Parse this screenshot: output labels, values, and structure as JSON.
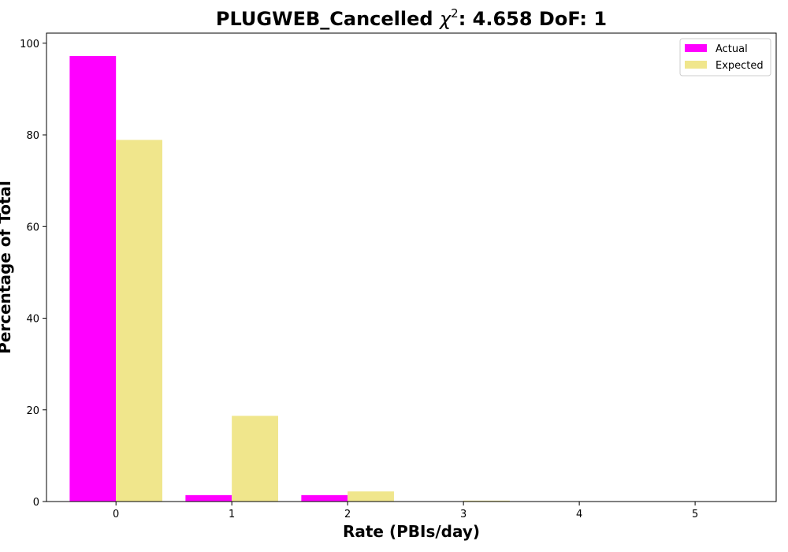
{
  "chart_data": {
    "type": "bar",
    "title_main": "PLUGWEB_Cancelled ",
    "title_chi": "χ",
    "title_sup": "2",
    "title_rest": ": 4.658 DoF: 1",
    "xlabel": "Rate (PBIs/day)",
    "ylabel": "Percentage of Total",
    "categories": [
      "0",
      "1",
      "2",
      "3",
      "4",
      "5"
    ],
    "ylim": [
      0,
      102.2
    ],
    "yticks": [
      0,
      20,
      40,
      60,
      80,
      100
    ],
    "grid": false,
    "legend_position": "top-right",
    "series": [
      {
        "name": "Actual",
        "color": "#ff00ff",
        "values": [
          97.2,
          1.4,
          1.4,
          0,
          0,
          0
        ]
      },
      {
        "name": "Expected",
        "color": "#f0e68c",
        "values": [
          78.9,
          18.7,
          2.2,
          0.2,
          0.0,
          0.0
        ]
      }
    ]
  }
}
